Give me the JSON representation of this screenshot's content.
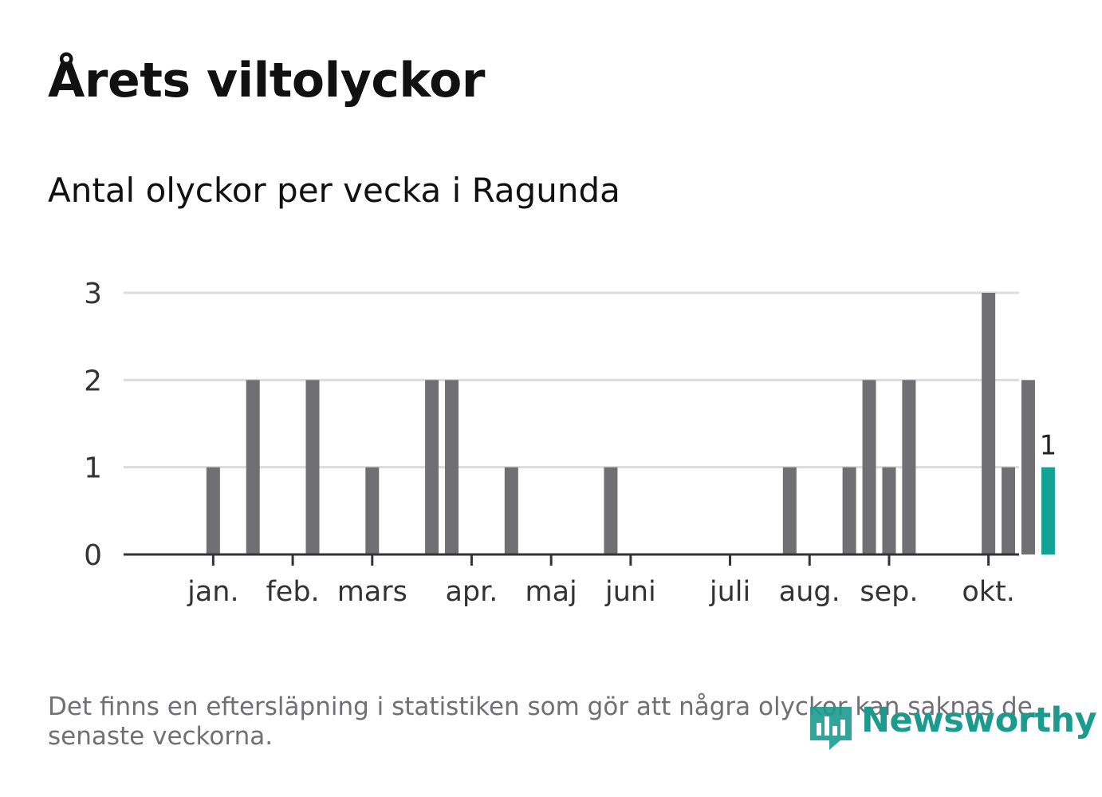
{
  "title": "Årets viltolyckor",
  "subtitle": "Antal olyckor per vecka i Ragunda",
  "footnote": "Det finns en eftersläpning i statistiken som gör att några olyckor kan saknas de senaste veckorna.",
  "brand": {
    "name": "Newsworthy",
    "icon": "newsworthy-logo-icon"
  },
  "colors": {
    "bar": "#6f6f74",
    "highlight": "#12a394",
    "grid": "#dcdcdc",
    "axis": "#333333",
    "brand": "#1d9a8e"
  },
  "chart_data": {
    "type": "bar",
    "x": [
      1,
      2,
      3,
      4,
      5,
      6,
      7,
      8,
      9,
      10,
      11,
      12,
      13,
      14,
      15,
      16,
      17,
      18,
      19,
      20,
      21,
      22,
      23,
      24,
      25,
      26,
      27,
      28,
      29,
      30,
      31,
      32,
      33,
      34,
      35,
      36,
      37,
      38,
      39,
      40,
      41,
      42,
      43,
      44,
      45
    ],
    "values": [
      0,
      0,
      1,
      0,
      2,
      0,
      0,
      2,
      0,
      0,
      1,
      0,
      0,
      2,
      2,
      0,
      0,
      1,
      0,
      0,
      0,
      0,
      1,
      0,
      0,
      0,
      0,
      0,
      0,
      0,
      0,
      1,
      0,
      0,
      1,
      2,
      1,
      2,
      0,
      0,
      0,
      3,
      1,
      2,
      1
    ],
    "month_ticks": [
      {
        "label": "jan.",
        "week": 3
      },
      {
        "label": "feb.",
        "week": 7
      },
      {
        "label": "mars",
        "week": 11
      },
      {
        "label": "apr.",
        "week": 16
      },
      {
        "label": "maj",
        "week": 20
      },
      {
        "label": "juni",
        "week": 24
      },
      {
        "label": "juli",
        "week": 29
      },
      {
        "label": "aug.",
        "week": 33
      },
      {
        "label": "sep.",
        "week": 37
      },
      {
        "label": "okt.",
        "week": 42
      }
    ],
    "ylim": [
      0,
      3
    ],
    "yticks": [
      0,
      1,
      2,
      3
    ],
    "highlight_last": true,
    "last_value_label": "1",
    "grid": true
  }
}
